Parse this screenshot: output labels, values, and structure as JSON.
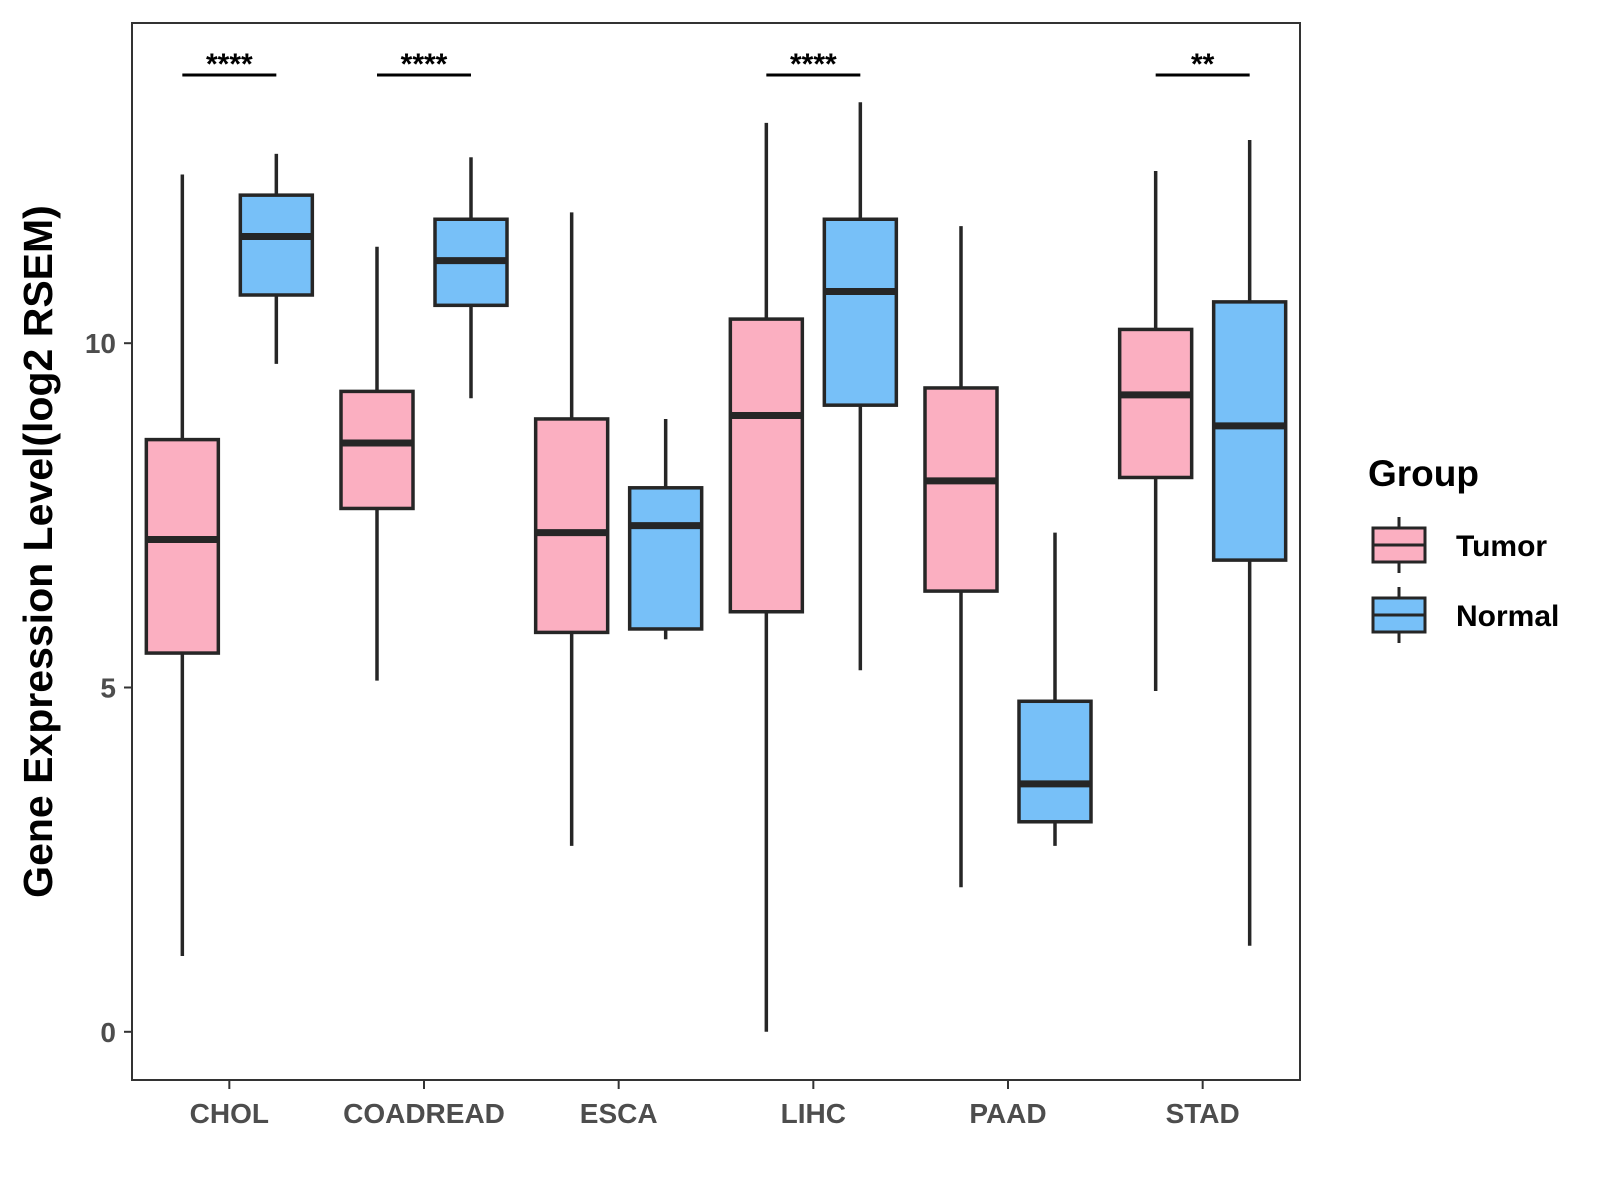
{
  "chart_data": {
    "type": "boxplot",
    "title": "",
    "xlabel": "",
    "ylabel": "Gene Expression Level(log2 RSEM)",
    "ylim": [
      -0.7,
      14.65
    ],
    "yticks": [
      0,
      5,
      10
    ],
    "categories": [
      "CHOL",
      "COADREAD",
      "ESCA",
      "LIHC",
      "PAAD",
      "STAD"
    ],
    "legend": {
      "title": "Group",
      "position": "right",
      "entries": [
        {
          "name": "Tumor",
          "color": "#FBAFC1"
        },
        {
          "name": "Normal",
          "color": "#77C0F8"
        }
      ]
    },
    "series": [
      {
        "name": "Tumor",
        "color": "#FBAFC1",
        "boxes": [
          {
            "category": "CHOL",
            "min": 1.1,
            "q1": 5.5,
            "median": 7.15,
            "q3": 8.6,
            "max": 12.45
          },
          {
            "category": "COADREAD",
            "min": 5.1,
            "q1": 7.6,
            "median": 8.55,
            "q3": 9.3,
            "max": 11.4
          },
          {
            "category": "ESCA",
            "min": 2.7,
            "q1": 5.8,
            "median": 7.25,
            "q3": 8.9,
            "max": 11.9
          },
          {
            "category": "LIHC",
            "min": 0.0,
            "q1": 6.1,
            "median": 8.95,
            "q3": 10.35,
            "max": 13.2
          },
          {
            "category": "PAAD",
            "min": 2.1,
            "q1": 6.4,
            "median": 8.0,
            "q3": 9.35,
            "max": 11.7
          },
          {
            "category": "STAD",
            "min": 4.95,
            "q1": 8.05,
            "median": 9.25,
            "q3": 10.2,
            "max": 12.5
          }
        ]
      },
      {
        "name": "Normal",
        "color": "#77C0F8",
        "boxes": [
          {
            "category": "CHOL",
            "min": 9.7,
            "q1": 10.7,
            "median": 11.55,
            "q3": 12.15,
            "max": 12.75
          },
          {
            "category": "COADREAD",
            "min": 9.2,
            "q1": 10.55,
            "median": 11.2,
            "q3": 11.8,
            "max": 12.7
          },
          {
            "category": "ESCA",
            "min": 5.7,
            "q1": 5.85,
            "median": 7.35,
            "q3": 7.9,
            "max": 8.9
          },
          {
            "category": "LIHC",
            "min": 5.25,
            "q1": 9.1,
            "median": 10.75,
            "q3": 11.8,
            "max": 13.5
          },
          {
            "category": "PAAD",
            "min": 2.7,
            "q1": 3.05,
            "median": 3.6,
            "q3": 4.8,
            "max": 7.25
          },
          {
            "category": "STAD",
            "min": 1.25,
            "q1": 6.85,
            "median": 8.8,
            "q3": 10.6,
            "max": 12.95
          }
        ]
      }
    ],
    "significance": [
      {
        "category": "CHOL",
        "label": "****"
      },
      {
        "category": "COADREAD",
        "label": "****"
      },
      {
        "category": "LIHC",
        "label": "****"
      },
      {
        "category": "STAD",
        "label": "**"
      }
    ]
  }
}
